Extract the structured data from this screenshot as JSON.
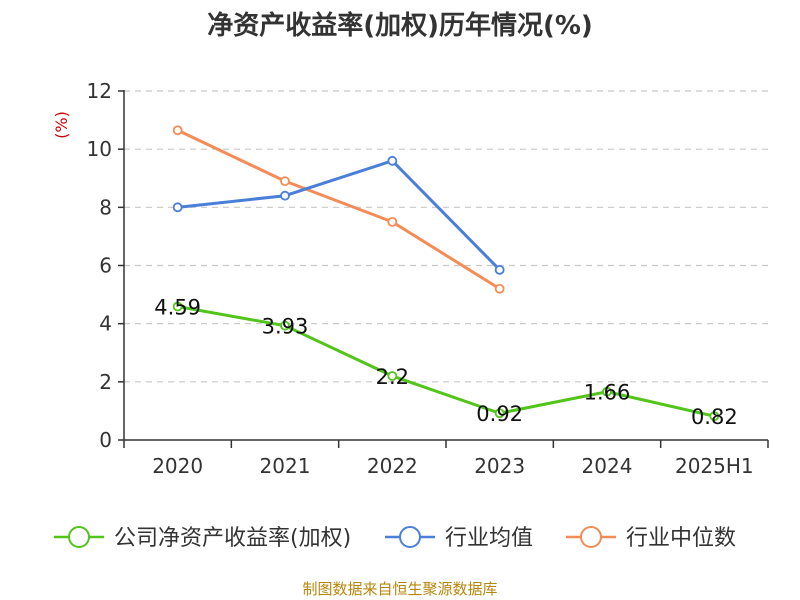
{
  "chart_data": {
    "type": "line",
    "title": "净资产收益率(加权)历年情况(%)",
    "y_unit": "(%)",
    "categories": [
      "2020",
      "2021",
      "2022",
      "2023",
      "2024",
      "2025H1"
    ],
    "ylim": [
      0,
      12
    ],
    "yticks": [
      0,
      2,
      4,
      6,
      8,
      10,
      12
    ],
    "grid": true,
    "legend_position": "bottom",
    "series": [
      {
        "name": "公司净资产收益率(加权)",
        "color": "#52c41a",
        "values": [
          4.59,
          3.93,
          2.2,
          0.92,
          1.66,
          0.82
        ],
        "labels": [
          "4.59",
          "3.93",
          "2.2",
          "0.92",
          "1.66",
          "0.82"
        ]
      },
      {
        "name": "行业均值",
        "color": "#4a7fd9",
        "values": [
          8.0,
          8.4,
          9.6,
          5.85,
          null,
          null
        ]
      },
      {
        "name": "行业中位数",
        "color": "#f58c57",
        "values": [
          10.65,
          8.9,
          7.5,
          5.2,
          null,
          null
        ]
      }
    ]
  },
  "source": "制图数据来自恒生聚源数据库"
}
